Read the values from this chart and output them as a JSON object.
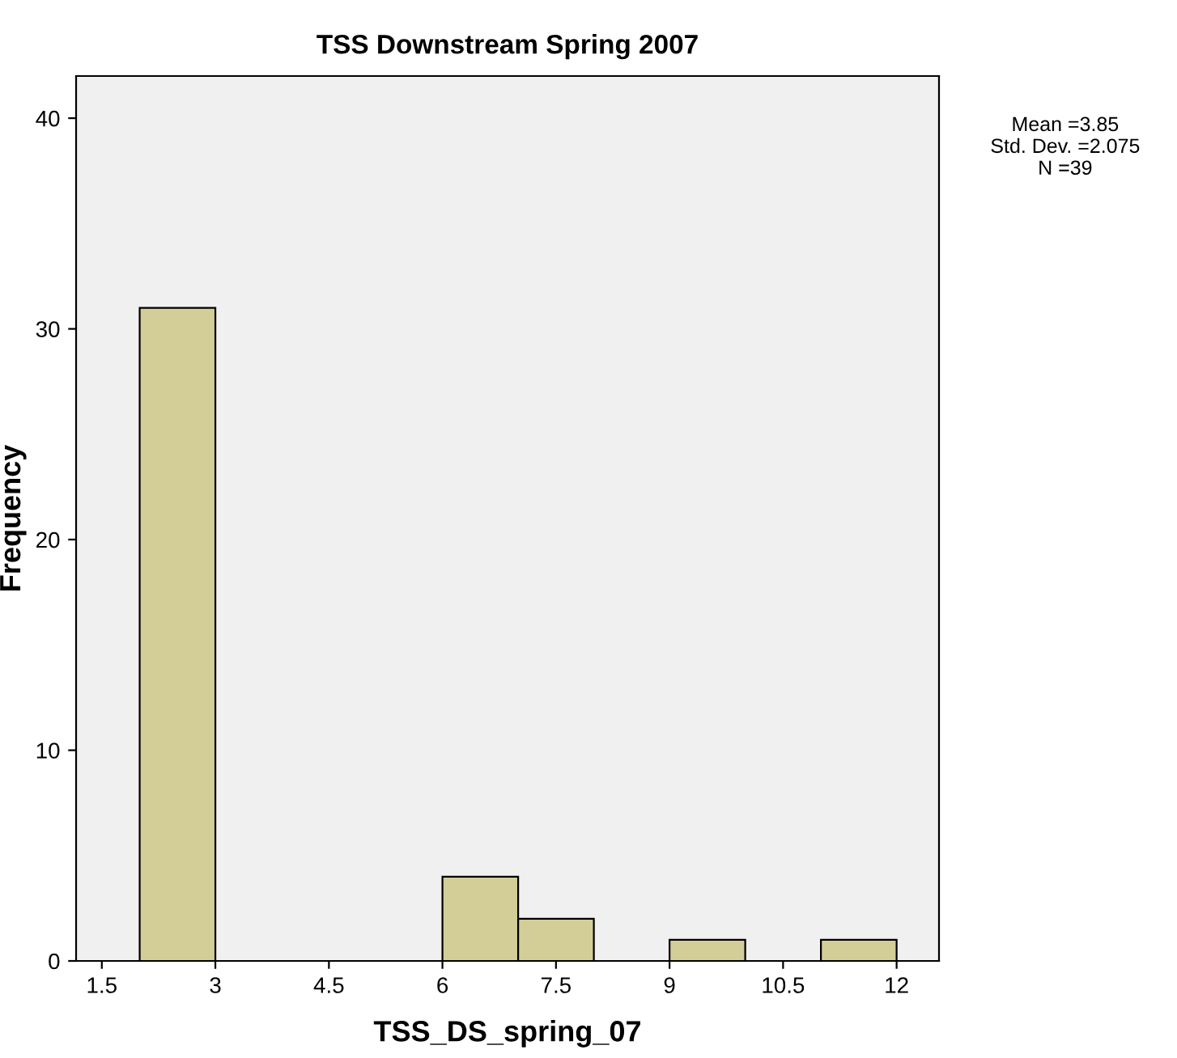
{
  "chart_data": {
    "type": "histogram",
    "title": "TSS Downstream Spring 2007",
    "xlabel": "TSS_DS_spring_07",
    "ylabel": "Frequency",
    "bins": [
      2,
      3,
      4,
      5,
      6,
      7,
      8,
      9,
      10,
      11,
      12
    ],
    "values": [
      31,
      0,
      0,
      0,
      4,
      2,
      0,
      1,
      0,
      1
    ],
    "color": "#d3ce98",
    "xlim": [
      1.16,
      12.56
    ],
    "xticks": [
      1.5,
      3,
      4.5,
      6,
      7.5,
      9,
      10.5,
      12
    ],
    "ylim": [
      0,
      42
    ],
    "yticks": [
      0,
      10,
      20,
      30,
      40
    ],
    "grid": false,
    "annotations": [
      "Mean =3.85\nStd. Dev. =2.075\nN =39"
    ]
  }
}
